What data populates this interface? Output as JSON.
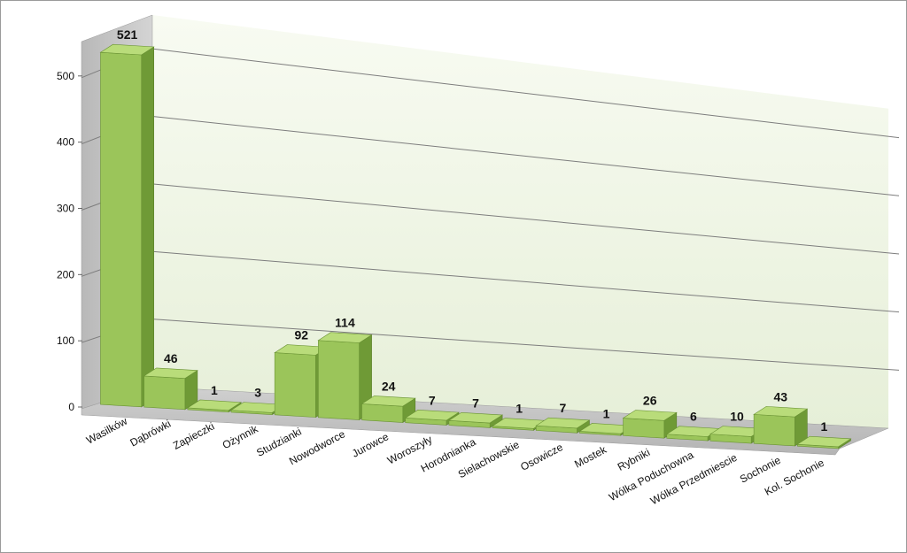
{
  "chart_data": {
    "type": "bar",
    "categories": [
      "Wasilków",
      "Dąbrówki",
      "Zapieczki",
      "Ożynnik",
      "Studzianki",
      "Nowodworce",
      "Jurowce",
      "Woroszyły",
      "Horodnianka",
      "Sielachowskie",
      "Osowicze",
      "Mostek",
      "Rybniki",
      "Wólka Poduchowna",
      "Wólka Przedmiescie",
      "Sochonie",
      "Kol. Sochonie"
    ],
    "values": [
      521,
      46,
      1,
      3,
      92,
      114,
      24,
      7,
      7,
      1,
      7,
      1,
      26,
      6,
      10,
      43,
      1
    ],
    "ylim": [
      0,
      550
    ],
    "yticks": [
      0,
      100,
      200,
      300,
      400,
      500
    ],
    "grid": true,
    "style": "3d-column",
    "colors": {
      "bar_front": "#9bc55a",
      "bar_top": "#b9dc7a",
      "bar_side": "#6f9a36",
      "wall": "#eef5e4",
      "side_wall": "#c9c9c9",
      "floor": "#c2c2c2",
      "gridline": "#7d7d7d"
    }
  }
}
